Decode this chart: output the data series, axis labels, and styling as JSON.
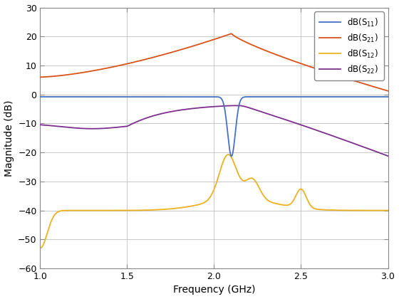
{
  "xlim": [
    1.0,
    3.0
  ],
  "ylim": [
    -60,
    30
  ],
  "xlabel": "Frequency (GHz)",
  "ylabel": "Magnitude (dB)",
  "yticks": [
    -60,
    -50,
    -40,
    -30,
    -20,
    -10,
    0,
    10,
    20,
    30
  ],
  "xticks": [
    1.0,
    1.5,
    2.0,
    2.5,
    3.0
  ],
  "legend_labels": [
    "dB(S$_{11}$)",
    "dB(S$_{21}$)",
    "dB(S$_{12}$)",
    "dB(S$_{22}$)"
  ],
  "colors": [
    "#4472C4",
    "#D95319",
    "#EDB120",
    "#7E2F8E"
  ],
  "background_color": "#FFFFFF",
  "grid_color": "#C0C0C0",
  "figsize": [
    5.6,
    4.2
  ],
  "dpi": 100
}
